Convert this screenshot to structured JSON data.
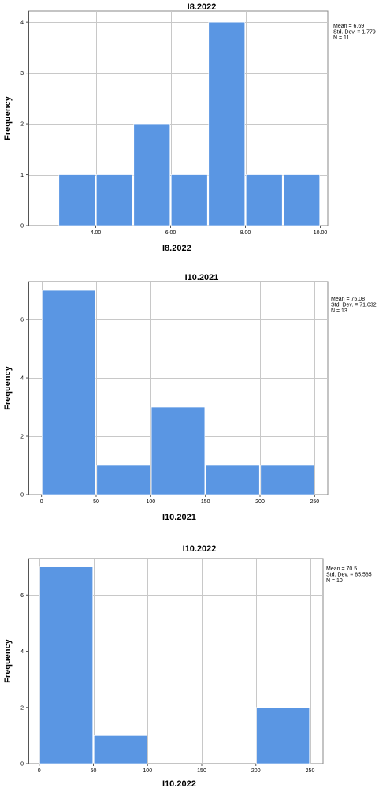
{
  "chart_data": [
    {
      "type": "bar",
      "title": "I8.2022",
      "xlabel": "I8.2022",
      "ylabel": "Frequency",
      "bin_edges": [
        3,
        4,
        5,
        6,
        7,
        8,
        9,
        10
      ],
      "values": [
        1,
        1,
        2,
        1,
        4,
        1,
        1
      ],
      "xlim": [
        2.2,
        10.2
      ],
      "xticks": [
        "4.00",
        "6.00",
        "8.00",
        "10.00"
      ],
      "xtick_values": [
        4,
        6,
        8,
        10
      ],
      "ylim": [
        0,
        4.22
      ],
      "yticks": [
        "0",
        "1",
        "2",
        "3",
        "4"
      ],
      "ytick_values": [
        0,
        1,
        2,
        3,
        4
      ],
      "stats": [
        "Mean = 6.69",
        "Std. Dev. = 1.779",
        "N = 11"
      ],
      "grid": true,
      "bar_color": "#5a96e3"
    },
    {
      "type": "bar",
      "title": "I10.2021",
      "xlabel": "I10.2021",
      "ylabel": "Frequency",
      "bin_edges": [
        0,
        50,
        100,
        150,
        200,
        250
      ],
      "values": [
        7,
        1,
        3,
        1,
        1
      ],
      "xlim": [
        -12,
        262
      ],
      "xticks": [
        "0",
        "50",
        "100",
        "150",
        "200",
        "250"
      ],
      "xtick_values": [
        0,
        50,
        100,
        150,
        200,
        250
      ],
      "ylim": [
        0,
        7.3
      ],
      "yticks": [
        "0",
        "2",
        "4",
        "6"
      ],
      "ytick_values": [
        0,
        2,
        4,
        6
      ],
      "stats": [
        "Mean = 75.08",
        "Std. Dev. = 71.032",
        "N = 13"
      ],
      "grid": true,
      "bar_color": "#5a96e3"
    },
    {
      "type": "bar",
      "title": "I10.2022",
      "xlabel": "I10.2022",
      "ylabel": "Frequency",
      "bin_edges": [
        0,
        50,
        100,
        150,
        200,
        250
      ],
      "values": [
        7,
        1,
        0,
        0,
        2
      ],
      "xlim": [
        -10,
        262
      ],
      "xticks": [
        "0",
        "50",
        "100",
        "150",
        "200",
        "250"
      ],
      "xtick_values": [
        0,
        50,
        100,
        150,
        200,
        250
      ],
      "ylim": [
        0,
        7.3
      ],
      "yticks": [
        "0",
        "2",
        "4",
        "6"
      ],
      "ytick_values": [
        0,
        2,
        4,
        6
      ],
      "stats": [
        "Mean = 70.5",
        "Std. Dev. = 85.585",
        "N = 10"
      ],
      "grid": true,
      "bar_color": "#5a96e3"
    }
  ]
}
